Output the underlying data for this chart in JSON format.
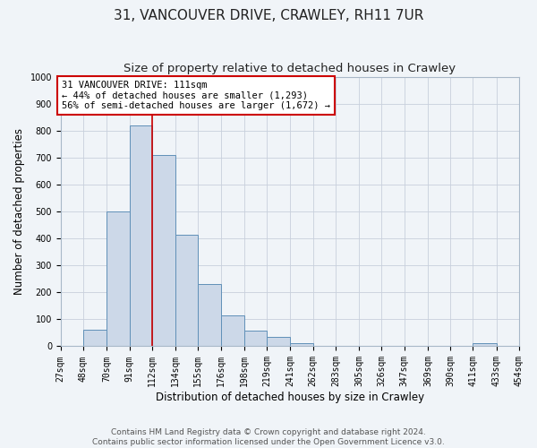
{
  "title": "31, VANCOUVER DRIVE, CRAWLEY, RH11 7UR",
  "subtitle": "Size of property relative to detached houses in Crawley",
  "xlabel": "Distribution of detached houses by size in Crawley",
  "ylabel": "Number of detached properties",
  "bin_edges": [
    27,
    48,
    70,
    91,
    112,
    134,
    155,
    176,
    198,
    219,
    241,
    262,
    283,
    305,
    326,
    347,
    369,
    390,
    411,
    433,
    454
  ],
  "bin_heights": [
    0,
    60,
    500,
    820,
    710,
    415,
    230,
    115,
    57,
    35,
    12,
    0,
    0,
    0,
    0,
    0,
    0,
    0,
    10,
    0
  ],
  "bar_facecolor": "#ccd8e8",
  "bar_edgecolor": "#6090b8",
  "property_line_x": 112,
  "property_line_color": "#cc0000",
  "annotation_text": "31 VANCOUVER DRIVE: 111sqm\n← 44% of detached houses are smaller (1,293)\n56% of semi-detached houses are larger (1,672) →",
  "annotation_box_edgecolor": "#cc0000",
  "annotation_box_facecolor": "#ffffff",
  "ylim": [
    0,
    1000
  ],
  "tick_labels": [
    "27sqm",
    "48sqm",
    "70sqm",
    "91sqm",
    "112sqm",
    "134sqm",
    "155sqm",
    "176sqm",
    "198sqm",
    "219sqm",
    "241sqm",
    "262sqm",
    "283sqm",
    "305sqm",
    "326sqm",
    "347sqm",
    "369sqm",
    "390sqm",
    "411sqm",
    "433sqm",
    "454sqm"
  ],
  "grid_color": "#c8d0dc",
  "bg_color": "#f0f4f8",
  "plot_bg_color": "#f0f4f8",
  "footer_text": "Contains HM Land Registry data © Crown copyright and database right 2024.\nContains public sector information licensed under the Open Government Licence v3.0.",
  "title_fontsize": 11,
  "subtitle_fontsize": 9.5,
  "axis_label_fontsize": 8.5,
  "tick_fontsize": 7,
  "annotation_fontsize": 7.5,
  "footer_fontsize": 6.5
}
